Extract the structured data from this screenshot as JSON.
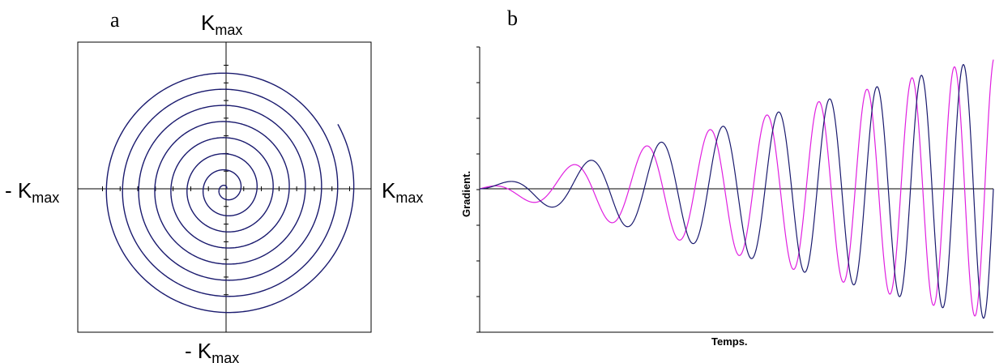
{
  "panel_a": {
    "letter": "a",
    "top_label": {
      "main": "K",
      "sub": "max"
    },
    "bottom_label": {
      "main": "- K",
      "sub": "max"
    },
    "left_label": {
      "main": "- K",
      "sub": "max"
    },
    "right_label": {
      "main": "K",
      "sub": "max"
    }
  },
  "panel_b": {
    "letter": "b",
    "ylabel": "Gradient.",
    "xlabel": "Temps."
  },
  "colors": {
    "navy": "#1a1a6e",
    "magenta": "#e020e0",
    "axis": "#000000"
  },
  "chart_data": [
    {
      "type": "line",
      "subtype": "spiral",
      "title": "",
      "turns": 8,
      "r_max_fraction": 0.88,
      "end_angle_deg": 30,
      "direction": "counterclockwise",
      "axes": "centered crosshair, ticks at 1/8 intervals",
      "xlim": [
        -1,
        1
      ],
      "ylim": [
        -1,
        1
      ],
      "grid": false,
      "color": "#1a1a6e"
    },
    {
      "type": "line",
      "title": "",
      "xlabel": "Temps.",
      "ylabel": "Gradient.",
      "x": [
        0,
        1
      ],
      "xlim": [
        0,
        1
      ],
      "ylim": [
        -1,
        1
      ],
      "grid": false,
      "y_ticks": 8,
      "series": [
        {
          "color": "#e020e0",
          "waveform": "cos",
          "cycles": 9,
          "envelope": "linear",
          "amplitude_end": 0.92
        },
        {
          "color": "#1a1a6e",
          "waveform": "sin",
          "cycles": 9,
          "envelope": "linear",
          "amplitude_end": 0.92
        }
      ]
    }
  ]
}
